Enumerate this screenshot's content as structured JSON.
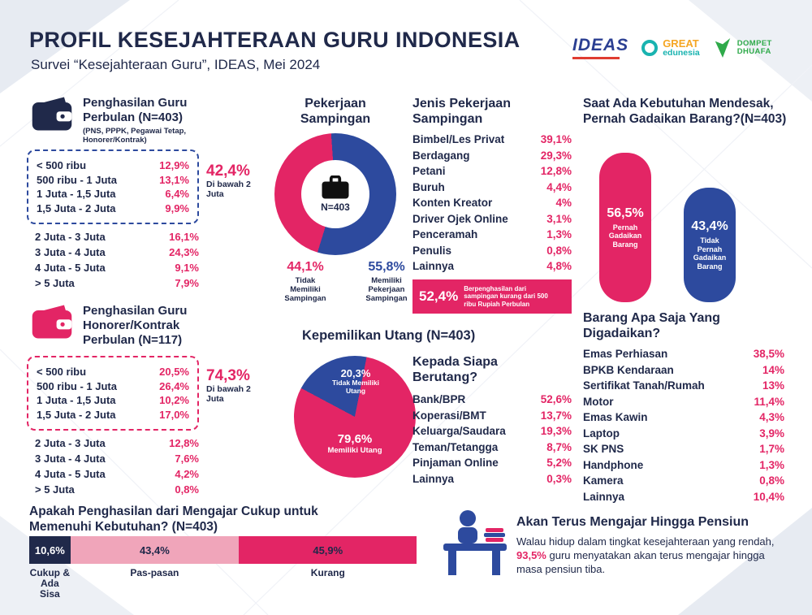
{
  "page": {
    "title": "PROFIL KESEJAHTERAAN GURU INDONESIA",
    "subtitle": "Survei “Kesejahteraan Guru”, IDEAS, Mei 2024"
  },
  "logos": {
    "ideas": "IDEAS",
    "great_top": "GREAT",
    "great_bottom": "edunesia",
    "dompet_top": "DOMPET",
    "dompet_bottom": "DHUAFA"
  },
  "income_all": {
    "title": "Penghasilan Guru Perbulan (N=403)",
    "subtitle": "(PNS, PPPK, Pegawai Tetap, Honorer/Kontrak)",
    "below_rows": [
      {
        "label": "< 500 ribu",
        "value": "12,9%"
      },
      {
        "label": "500 ribu - 1 Juta",
        "value": "13,1%"
      },
      {
        "label": "1 Juta - 1,5 Juta",
        "value": "6,4%"
      },
      {
        "label": "1,5 Juta - 2 Juta",
        "value": "9,9%"
      }
    ],
    "callout": {
      "value": "42,4%",
      "label": "Di bawah 2 Juta"
    },
    "above_rows": [
      {
        "label": "2 Juta - 3 Juta",
        "value": "16,1%"
      },
      {
        "label": "3 Juta - 4 Juta",
        "value": "24,3%"
      },
      {
        "label": "4 Juta - 5 Juta",
        "value": "9,1%"
      },
      {
        "label": "> 5 Juta",
        "value": "7,9%"
      }
    ]
  },
  "income_honorer": {
    "title": "Penghasilan Guru Honorer/Kontrak Perbulan (N=117)",
    "below_rows": [
      {
        "label": "< 500 ribu",
        "value": "20,5%"
      },
      {
        "label": "500 ribu - 1 Juta",
        "value": "26,4%"
      },
      {
        "label": "1 Juta - 1,5 Juta",
        "value": "10,2%"
      },
      {
        "label": "1,5 Juta - 2 Juta",
        "value": "17,0%"
      }
    ],
    "callout": {
      "value": "74,3%",
      "label": "Di bawah 2 Juta"
    },
    "above_rows": [
      {
        "label": "2 Juta - 3 Juta",
        "value": "12,8%"
      },
      {
        "label": "3 Juta - 4 Juta",
        "value": "7,6%"
      },
      {
        "label": "4 Juta - 5 Juta",
        "value": "4,2%"
      },
      {
        "label": "> 5 Juta",
        "value": "0,8%"
      }
    ]
  },
  "side_job": {
    "title": "Pekerjaan Sampingan",
    "center_label": "N=403",
    "no": {
      "value": "44,1%",
      "label": "Tidak Memiliki Sampingan"
    },
    "yes": {
      "value": "55,8%",
      "label": "Memiliki Pekerjaan Sampingan"
    }
  },
  "side_job_types": {
    "title": "Jenis Pekerjaan Sampingan",
    "items": [
      {
        "label": "Bimbel/Les Privat",
        "value": "39,1%"
      },
      {
        "label": "Berdagang",
        "value": "29,3%"
      },
      {
        "label": "Petani",
        "value": "12,8%"
      },
      {
        "label": "Buruh",
        "value": "4,4%"
      },
      {
        "label": "Konten Kreator",
        "value": "4%"
      },
      {
        "label": "Driver Ojek Online",
        "value": "3,1%"
      },
      {
        "label": "Penceramah",
        "value": "1,3%"
      },
      {
        "label": "Penulis",
        "value": "0,8%"
      },
      {
        "label": "Lainnya",
        "value": "4,8%"
      }
    ],
    "badge": {
      "value": "52,4%",
      "text": "Berpenghasilan dari sampingan kurang dari 500 ribu Rupiah Perbulan"
    }
  },
  "debt": {
    "title": "Kepemilikan Utang (N=403)",
    "no": {
      "value": "20,3%",
      "label": "Tidak Memiliki Utang"
    },
    "yes": {
      "value": "79,6%",
      "label": "Memiliki Utang"
    }
  },
  "debt_to": {
    "title": "Kepada Siapa Berutang?",
    "items": [
      {
        "label": "Bank/BPR",
        "value": "52,6%"
      },
      {
        "label": "Koperasi/BMT",
        "value": "13,7%"
      },
      {
        "label": "Keluarga/Saudara",
        "value": "19,3%"
      },
      {
        "label": "Teman/Tetangga",
        "value": "8,7%"
      },
      {
        "label": "Pinjaman Online",
        "value": "5,2%"
      },
      {
        "label": "Lainnya",
        "value": "0,3%"
      }
    ]
  },
  "pawn": {
    "title": "Saat Ada Kebutuhan Mendesak, Pernah Gadaikan Barang?(N=403)",
    "bars": [
      {
        "value": "56,5%",
        "label": "Pernah Gadaikan Barang"
      },
      {
        "value": "43,4%",
        "label": "Tidak Pernah Gadaikan Barang"
      }
    ]
  },
  "pawned_items": {
    "title": "Barang Apa Saja Yang Digadaikan?",
    "items": [
      {
        "label": "Emas Perhiasan",
        "value": "38,5%"
      },
      {
        "label": "BPKB Kendaraan",
        "value": "14%"
      },
      {
        "label": "Sertifikat Tanah/Rumah",
        "value": "13%"
      },
      {
        "label": "Motor",
        "value": "11,4%"
      },
      {
        "label": "Emas Kawin",
        "value": "4,3%"
      },
      {
        "label": "Laptop",
        "value": "3,9%"
      },
      {
        "label": "SK PNS",
        "value": "1,7%"
      },
      {
        "label": "Handphone",
        "value": "1,3%"
      },
      {
        "label": "Kamera",
        "value": "0,8%"
      },
      {
        "label": "Lainnya",
        "value": "10,4%"
      }
    ]
  },
  "sufficiency": {
    "title": "Apakah Penghasilan dari Mengajar Cukup untuk Memenuhi Kebutuhan? (N=403)",
    "segments": [
      {
        "value": "10,6%",
        "label": "Cukup & Ada Sisa"
      },
      {
        "value": "43,4%",
        "label": "Pas-pasan"
      },
      {
        "value": "45,9%",
        "label": "Kurang"
      }
    ]
  },
  "closing": {
    "title": "Akan Terus Mengajar Hingga Pensiun",
    "text_before": "Walau hidup dalam tingkat kesejahteraan yang rendah, ",
    "highlight": "93,5%",
    "text_after": " guru menyatakan akan terus mengajar hingga masa pensiun tiba."
  },
  "colors": {
    "navy": "#20294a",
    "magenta": "#e32565",
    "blue": "#2d4a9e",
    "light_pink": "#f0a5ba"
  },
  "chart_data": [
    {
      "id": "income_all",
      "type": "bar",
      "title": "Penghasilan Guru Perbulan (N=403)",
      "categories": [
        "< 500 ribu",
        "500 ribu - 1 Juta",
        "1 Juta - 1,5 Juta",
        "1,5 Juta - 2 Juta",
        "2 Juta - 3 Juta",
        "3 Juta - 4 Juta",
        "4 Juta - 5 Juta",
        "> 5 Juta"
      ],
      "values": [
        12.9,
        13.1,
        6.4,
        9.9,
        16.1,
        24.3,
        9.1,
        7.9
      ],
      "annotation": "42,4% Di bawah 2 Juta"
    },
    {
      "id": "income_honorer",
      "type": "bar",
      "title": "Penghasilan Guru Honorer/Kontrak Perbulan (N=117)",
      "categories": [
        "< 500 ribu",
        "500 ribu - 1 Juta",
        "1 Juta - 1,5 Juta",
        "1,5 Juta - 2 Juta",
        "2 Juta - 3 Juta",
        "3 Juta - 4 Juta",
        "4 Juta - 5 Juta",
        "> 5 Juta"
      ],
      "values": [
        20.5,
        26.4,
        10.2,
        17.0,
        12.8,
        7.6,
        4.2,
        0.8
      ],
      "annotation": "74,3% Di bawah 2 Juta"
    },
    {
      "id": "side_job_donut",
      "type": "pie",
      "title": "Pekerjaan Sampingan",
      "labels": [
        "Tidak Memiliki Sampingan",
        "Memiliki Pekerjaan Sampingan"
      ],
      "values": [
        44.1,
        55.8
      ],
      "colors": [
        "#e32565",
        "#2d4a9e"
      ],
      "center_label": "N=403"
    },
    {
      "id": "side_job_types",
      "type": "bar",
      "title": "Jenis Pekerjaan Sampingan",
      "categories": [
        "Bimbel/Les Privat",
        "Berdagang",
        "Petani",
        "Buruh",
        "Konten Kreator",
        "Driver Ojek Online",
        "Penceramah",
        "Penulis",
        "Lainnya"
      ],
      "values": [
        39.1,
        29.3,
        12.8,
        4.4,
        4,
        3.1,
        1.3,
        0.8,
        4.8
      ],
      "annotation": "52,4% Berpenghasilan dari sampingan kurang dari 500 ribu Rupiah Perbulan"
    },
    {
      "id": "debt_pie",
      "type": "pie",
      "title": "Kepemilikan Utang (N=403)",
      "labels": [
        "Tidak Memiliki Utang",
        "Memiliki Utang"
      ],
      "values": [
        20.3,
        79.6
      ],
      "colors": [
        "#2d4a9e",
        "#e32565"
      ]
    },
    {
      "id": "debt_to",
      "type": "bar",
      "title": "Kepada Siapa Berutang?",
      "categories": [
        "Bank/BPR",
        "Koperasi/BMT",
        "Keluarga/Saudara",
        "Teman/Tetangga",
        "Pinjaman Online",
        "Lainnya"
      ],
      "values": [
        52.6,
        13.7,
        19.3,
        8.7,
        5.2,
        0.3
      ]
    },
    {
      "id": "pawn_bars",
      "type": "bar",
      "title": "Saat Ada Kebutuhan Mendesak, Pernah Gadaikan Barang?(N=403)",
      "categories": [
        "Pernah Gadaikan Barang",
        "Tidak Pernah Gadaikan Barang"
      ],
      "values": [
        56.5,
        43.4
      ],
      "colors": [
        "#e32565",
        "#2d4a9e"
      ]
    },
    {
      "id": "pawned_items",
      "type": "bar",
      "title": "Barang Apa Saja Yang Digadaikan?",
      "categories": [
        "Emas Perhiasan",
        "BPKB Kendaraan",
        "Sertifikat Tanah/Rumah",
        "Motor",
        "Emas Kawin",
        "Laptop",
        "SK PNS",
        "Handphone",
        "Kamera",
        "Lainnya"
      ],
      "values": [
        38.5,
        14,
        13,
        11.4,
        4.3,
        3.9,
        1.7,
        1.3,
        0.8,
        10.4
      ]
    },
    {
      "id": "income_sufficiency",
      "type": "bar",
      "title": "Apakah Penghasilan dari Mengajar Cukup untuk Memenuhi Kebutuhan? (N=403)",
      "categories": [
        "Cukup & Ada Sisa",
        "Pas-pasan",
        "Kurang"
      ],
      "values": [
        10.6,
        43.4,
        45.9
      ],
      "colors": [
        "#20294a",
        "#f0a5ba",
        "#e32565"
      ]
    }
  ]
}
